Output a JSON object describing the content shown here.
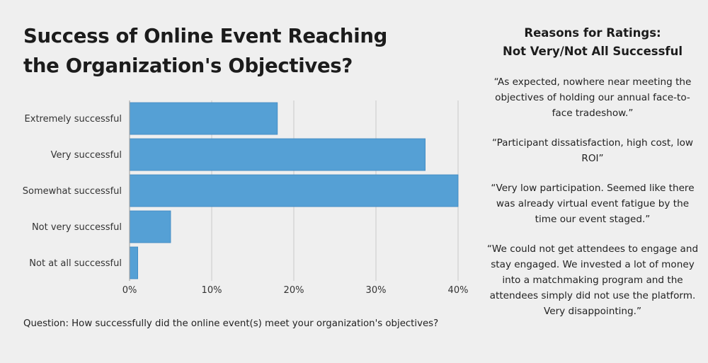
{
  "title_lines": [
    "Success of Online Event Reaching",
    "the Organization's Objectives?"
  ],
  "question": "Question: How successfully did the online event(s) meet your organization's objectives?",
  "reasons": {
    "title_lines": [
      "Reasons for Ratings:",
      "Not Very/Not All Successful"
    ],
    "quotes": [
      "“As expected, nowhere near meeting the objectives of holding our annual face-to-face tradeshow.”",
      "“Participant dissatisfaction, high cost, low ROI”",
      "“Very low participation. Seemed like there was already virtual event fatigue by the time our event staged.”",
      "“We could not get attendees to engage and stay engaged. We invested a lot of money into a matchmaking program and the attendees simply did not use the platform. Very disappointing.”"
    ]
  },
  "colors": {
    "bar": "#55a0d5",
    "bar_edge": "#3f89c1",
    "grid": "#c8c8c8",
    "background": "#efefef"
  },
  "chart_data": {
    "type": "bar",
    "orientation": "horizontal",
    "categories": [
      "Extremely successful",
      "Very successful",
      "Somewhat successful",
      "Not very successful",
      "Not at all successful"
    ],
    "values": [
      18,
      36,
      40,
      5,
      1
    ],
    "unit": "%",
    "xlim": [
      0,
      40
    ],
    "ticks": [
      0,
      10,
      20,
      30,
      40
    ],
    "tick_labels": [
      "0%",
      "10%",
      "20%",
      "30%",
      "40%"
    ],
    "grid": true
  }
}
